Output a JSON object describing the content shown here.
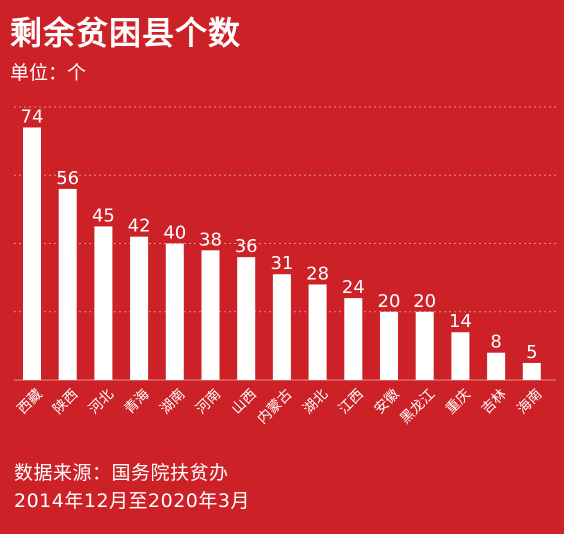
{
  "title": "剩余贫困县个数",
  "unit_label": "单位：个",
  "footer": {
    "source": "数据来源：国务院扶贫办",
    "period": "2014年12月至2020年3月"
  },
  "colors": {
    "background": "#cc2127",
    "bar": "#ffffff",
    "text": "#ffffff",
    "grid": "#e88a8d"
  },
  "chart_data": {
    "type": "bar",
    "title": "剩余贫困县个数",
    "ylabel": "单位：个",
    "xlabel": "",
    "categories": [
      "西藏",
      "陕西",
      "河北",
      "青海",
      "湖南",
      "河南",
      "山西",
      "内蒙古",
      "湖北",
      "江西",
      "安徽",
      "黑龙江",
      "重庆",
      "吉林",
      "海南"
    ],
    "values": [
      74,
      56,
      45,
      42,
      40,
      38,
      36,
      31,
      28,
      24,
      20,
      20,
      14,
      8,
      5
    ],
    "ylim": [
      0,
      80
    ],
    "grid": true,
    "grid_style": "dotted horizontal",
    "data_labels": true
  }
}
